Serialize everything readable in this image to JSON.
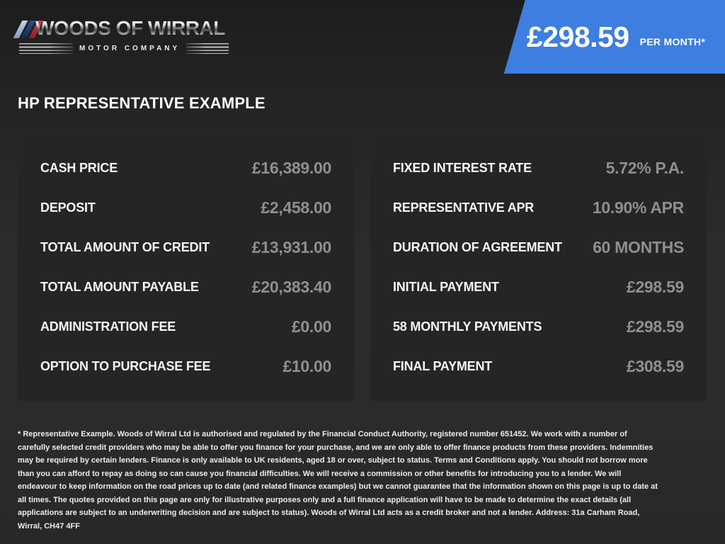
{
  "brand": {
    "name": "WOODS OF WIRRAL",
    "subtitle": "MOTOR COMPANY",
    "stripe_colors": [
      "#8ea6bf",
      "#1e3a66",
      "#ae2b3f"
    ]
  },
  "banner": {
    "amount": "£298.59",
    "period": "PER MONTH*",
    "color": "#3d7ee0"
  },
  "page_title": "HP REPRESENTATIVE EXAMPLE",
  "finance": {
    "left_rows": [
      {
        "label": "CASH PRICE",
        "value": "£16,389.00"
      },
      {
        "label": "DEPOSIT",
        "value": "£2,458.00"
      },
      {
        "label": "TOTAL AMOUNT OF CREDIT",
        "value": "£13,931.00"
      },
      {
        "label": "TOTAL AMOUNT PAYABLE",
        "value": "£20,383.40"
      },
      {
        "label": "ADMINISTRATION FEE",
        "value": "£0.00"
      },
      {
        "label": "OPTION TO PURCHASE FEE",
        "value": "£10.00"
      }
    ],
    "right_rows": [
      {
        "label": "FIXED INTEREST RATE",
        "value": "5.72% P.A."
      },
      {
        "label": "REPRESENTATIVE APR",
        "value": "10.90% APR"
      },
      {
        "label": "DURATION OF AGREEMENT",
        "value": "60 MONTHS"
      },
      {
        "label": "INITIAL PAYMENT",
        "value": "£298.59"
      },
      {
        "label": "58 MONTHLY PAYMENTS",
        "value": "£298.59"
      },
      {
        "label": "FINAL PAYMENT",
        "value": "£308.59"
      }
    ]
  },
  "disclaimer": "* Representative Example. Woods of Wirral Ltd is authorised and regulated by the Financial Conduct Authority, registered number 651452. We work with a number of carefully selected credit providers who may be able to offer you finance for your purchase, and we are only able to offer finance products from these providers. Indemnities may be required by certain lenders. Finance is only available to UK residents, aged 18 or over, subject to status. Terms and Conditions apply. You should not borrow more than you can afford to repay as doing so can cause you financial difficulties. We will receive a commission or other benefits for introducing you to a lender. We will endeavour to keep information on the road prices up to date (and related finance examples) but we cannot guarantee that the information shown on this page is up to date at all times. The quotes provided on this page are only for illustrative purposes only and a full finance application will have to be made to determine the exact details (all applications are subject to an underwriting decision and are subject to status). Woods of Wirral Ltd acts as a credit broker and not a lender. Address: 31a Carham Road, Wirral, CH47 4FF"
}
